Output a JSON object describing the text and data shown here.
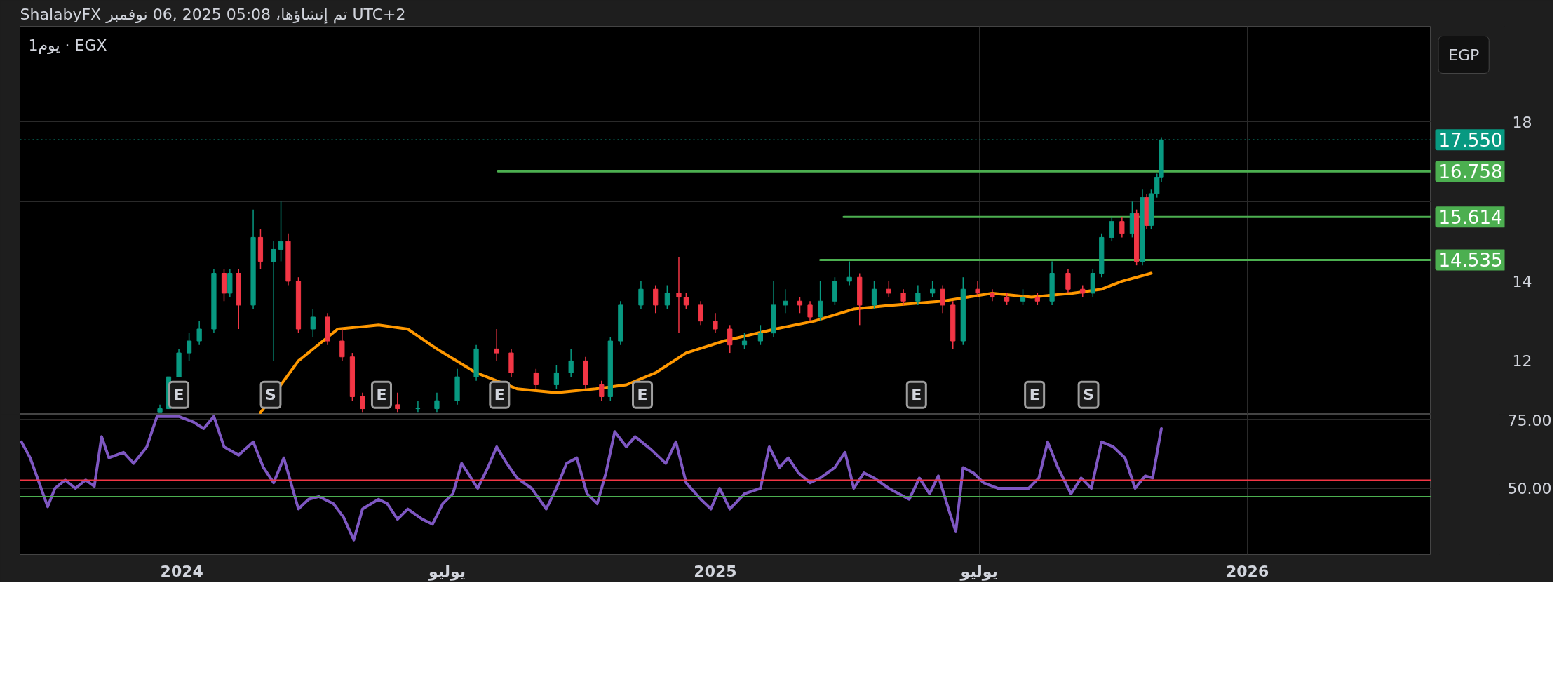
{
  "chart_data": [
    {
      "type": "candlestick",
      "title": "ShalabyFX تم إنشاؤها، 05:08 2025 ,06 نوفمبر UTC+2",
      "subtitle": "يوم1 · EGX",
      "ylabel": "EGP",
      "x": [
        "2023-12-17",
        "2023-12-23",
        "2023-12-30",
        "2024-01-06",
        "2024-01-13",
        "2024-01-23",
        "2024-01-30",
        "2024-02-03",
        "2024-02-09",
        "2024-02-19",
        "2024-02-24",
        "2024-03-04",
        "2024-03-09",
        "2024-03-14",
        "2024-03-21",
        "2024-03-31",
        "2024-04-10",
        "2024-04-20",
        "2024-04-27",
        "2024-05-04",
        "2024-05-28",
        "2024-06-11",
        "2024-06-24",
        "2024-07-08",
        "2024-07-21",
        "2024-08-04",
        "2024-08-14",
        "2024-08-31",
        "2024-09-14",
        "2024-09-24",
        "2024-10-04",
        "2024-10-15",
        "2024-10-21",
        "2024-10-28",
        "2024-11-11",
        "2024-11-21",
        "2024-11-29",
        "2024-12-07",
        "2024-12-12",
        "2024-12-22",
        "2025-01-01",
        "2025-01-11",
        "2025-01-21",
        "2025-02-01",
        "2025-02-10",
        "2025-02-18",
        "2025-02-28",
        "2025-03-07",
        "2025-03-14",
        "2025-03-24",
        "2025-04-03",
        "2025-04-10",
        "2025-04-20",
        "2025-04-30",
        "2025-05-10",
        "2025-05-20",
        "2025-05-30",
        "2025-06-06",
        "2025-06-13",
        "2025-06-20",
        "2025-06-30",
        "2025-07-10",
        "2025-07-20",
        "2025-07-31",
        "2025-08-10",
        "2025-08-20",
        "2025-08-31",
        "2025-09-10",
        "2025-09-17",
        "2025-09-23",
        "2025-09-30",
        "2025-10-07",
        "2025-10-14",
        "2025-10-17",
        "2025-10-21",
        "2025-10-24",
        "2025-10-27",
        "2025-10-31",
        "2025-11-03"
      ],
      "ohlc": [
        [
          10.7,
          10.9,
          10.7,
          10.8
        ],
        [
          10.8,
          11.6,
          10.8,
          11.6
        ],
        [
          11.6,
          12.3,
          11.6,
          12.2
        ],
        [
          12.2,
          12.7,
          12.0,
          12.5
        ],
        [
          12.5,
          13.0,
          12.4,
          12.8
        ],
        [
          12.8,
          14.3,
          12.7,
          14.2
        ],
        [
          14.2,
          14.3,
          13.5,
          13.7
        ],
        [
          13.7,
          14.3,
          13.6,
          14.2
        ],
        [
          14.2,
          14.3,
          12.8,
          13.4
        ],
        [
          13.4,
          15.8,
          13.3,
          15.1
        ],
        [
          15.1,
          15.3,
          14.3,
          14.5
        ],
        [
          14.5,
          15.0,
          12.0,
          14.8
        ],
        [
          14.8,
          16.0,
          14.5,
          15.0
        ],
        [
          15.0,
          15.2,
          13.9,
          14.0
        ],
        [
          14.0,
          14.1,
          12.7,
          12.8
        ],
        [
          12.8,
          13.3,
          12.6,
          13.1
        ],
        [
          13.1,
          13.2,
          12.4,
          12.5
        ],
        [
          12.5,
          12.8,
          12.0,
          12.1
        ],
        [
          12.1,
          12.2,
          11.0,
          11.1
        ],
        [
          11.1,
          11.2,
          10.7,
          10.8
        ],
        [
          10.9,
          11.2,
          10.7,
          10.8
        ],
        [
          10.8,
          11.0,
          10.7,
          10.8
        ],
        [
          10.8,
          11.2,
          10.7,
          11.0
        ],
        [
          11.0,
          11.8,
          10.9,
          11.6
        ],
        [
          11.6,
          12.4,
          11.5,
          12.3
        ],
        [
          12.3,
          12.8,
          12.0,
          12.2
        ],
        [
          12.2,
          12.3,
          11.6,
          11.7
        ],
        [
          11.7,
          11.8,
          11.3,
          11.4
        ],
        [
          11.4,
          11.9,
          11.3,
          11.7
        ],
        [
          11.7,
          12.3,
          11.6,
          12.0
        ],
        [
          12.0,
          12.1,
          11.3,
          11.4
        ],
        [
          11.4,
          11.5,
          11.0,
          11.1
        ],
        [
          11.1,
          12.6,
          11.0,
          12.5
        ],
        [
          12.5,
          13.5,
          12.4,
          13.4
        ],
        [
          13.4,
          14.0,
          13.3,
          13.8
        ],
        [
          13.8,
          13.9,
          13.2,
          13.4
        ],
        [
          13.4,
          13.9,
          13.3,
          13.7
        ],
        [
          13.7,
          14.6,
          12.7,
          13.6
        ],
        [
          13.6,
          13.7,
          13.3,
          13.4
        ],
        [
          13.4,
          13.5,
          12.9,
          13.0
        ],
        [
          13.0,
          13.2,
          12.7,
          12.8
        ],
        [
          12.8,
          12.9,
          12.2,
          12.4
        ],
        [
          12.4,
          12.7,
          12.3,
          12.5
        ],
        [
          12.5,
          12.9,
          12.4,
          12.7
        ],
        [
          12.7,
          14.0,
          12.6,
          13.4
        ],
        [
          13.4,
          13.8,
          13.2,
          13.5
        ],
        [
          13.5,
          13.6,
          13.2,
          13.4
        ],
        [
          13.4,
          13.5,
          13.0,
          13.1
        ],
        [
          13.1,
          14.0,
          13.0,
          13.5
        ],
        [
          13.5,
          14.1,
          13.4,
          14.0
        ],
        [
          14.0,
          14.5,
          13.9,
          14.1
        ],
        [
          14.1,
          14.2,
          12.9,
          13.4
        ],
        [
          13.4,
          14.0,
          13.3,
          13.8
        ],
        [
          13.8,
          14.0,
          13.6,
          13.7
        ],
        [
          13.7,
          13.8,
          13.4,
          13.5
        ],
        [
          13.5,
          13.9,
          13.4,
          13.7
        ],
        [
          13.7,
          14.0,
          13.6,
          13.8
        ],
        [
          13.8,
          13.9,
          13.2,
          13.4
        ],
        [
          13.4,
          13.5,
          12.3,
          12.5
        ],
        [
          12.5,
          14.1,
          12.4,
          13.8
        ],
        [
          13.8,
          14.0,
          13.6,
          13.7
        ],
        [
          13.7,
          13.8,
          13.5,
          13.6
        ],
        [
          13.6,
          13.7,
          13.4,
          13.5
        ],
        [
          13.5,
          13.8,
          13.4,
          13.6
        ],
        [
          13.6,
          13.7,
          13.4,
          13.5
        ],
        [
          13.5,
          14.5,
          13.4,
          14.2
        ],
        [
          14.2,
          14.3,
          13.7,
          13.8
        ],
        [
          13.8,
          13.9,
          13.6,
          13.7
        ],
        [
          13.7,
          14.3,
          13.6,
          14.2
        ],
        [
          14.2,
          15.2,
          14.1,
          15.1
        ],
        [
          15.1,
          15.6,
          15.0,
          15.5
        ],
        [
          15.5,
          15.6,
          15.1,
          15.2
        ],
        [
          15.2,
          16.0,
          15.1,
          15.7
        ],
        [
          15.7,
          15.8,
          14.4,
          14.5
        ],
        [
          14.5,
          16.3,
          14.4,
          16.1
        ],
        [
          16.1,
          16.2,
          15.3,
          15.4
        ],
        [
          15.4,
          16.3,
          15.3,
          16.2
        ],
        [
          16.2,
          16.7,
          16.1,
          16.6
        ],
        [
          16.6,
          17.6,
          16.5,
          17.55
        ]
      ],
      "series": [
        {
          "type": "line",
          "color": "#ff9800",
          "x": [
            "2024-02-24",
            "2024-03-21",
            "2024-04-17",
            "2024-05-15",
            "2024-06-04",
            "2024-06-24",
            "2024-07-21",
            "2024-08-18",
            "2024-09-14",
            "2024-10-11",
            "2024-11-01",
            "2024-11-21",
            "2024-12-12",
            "2025-01-07",
            "2025-02-11",
            "2025-03-10",
            "2025-04-06",
            "2025-05-03",
            "2025-06-06",
            "2025-07-10",
            "2025-08-06",
            "2025-09-03",
            "2025-09-23",
            "2025-10-07",
            "2025-10-27"
          ],
          "values": [
            10.7,
            12.0,
            12.8,
            12.9,
            12.8,
            12.3,
            11.7,
            11.3,
            11.2,
            11.3,
            11.4,
            11.7,
            12.2,
            12.5,
            12.8,
            13.0,
            13.3,
            13.4,
            13.5,
            13.7,
            13.6,
            13.7,
            13.8,
            14.0,
            14.2
          ]
        },
        {
          "type": "line",
          "color": "#4caf50",
          "x": [
            "2024-08-05",
            "2026-05-07"
          ],
          "values": [
            16.758,
            16.758
          ],
          "value_labels": [
            null,
            "16.758"
          ]
        },
        {
          "type": "line",
          "color": "#4caf50",
          "x": [
            "2025-03-30",
            "2026-05-07"
          ],
          "values": [
            15.614,
            15.614
          ],
          "value_labels": [
            null,
            "15.614"
          ]
        },
        {
          "type": "line",
          "color": "#4caf50",
          "x": [
            "2025-03-14",
            "2026-05-07"
          ],
          "values": [
            14.535,
            14.535
          ],
          "value_labels": [
            null,
            "14.535"
          ]
        }
      ],
      "ref_lines": [
        {
          "axis": "y",
          "value": 17.55,
          "label": "17.550",
          "color": "#089981",
          "line_style": "dotted"
        }
      ],
      "annotations": [
        {
          "text": "E",
          "x": "2023-12-30",
          "y": 11.15
        },
        {
          "text": "S",
          "x": "2024-03-02",
          "y": 11.15
        },
        {
          "text": "E",
          "x": "2024-05-17",
          "y": 11.15
        },
        {
          "text": "E",
          "x": "2024-08-06",
          "y": 11.15
        },
        {
          "text": "E",
          "x": "2024-11-12",
          "y": 11.15
        },
        {
          "text": "E",
          "x": "2025-05-19",
          "y": 11.15
        },
        {
          "text": "E",
          "x": "2025-08-08",
          "y": 11.15
        },
        {
          "text": "S",
          "x": "2025-09-14",
          "y": 11.15
        }
      ],
      "xlim": [
        "2023-09-12",
        "2026-05-07"
      ],
      "ylim": [
        10.66,
        20.4
      ],
      "yticks": [
        12,
        14,
        {
          "value": 16,
          "label": null
        },
        18
      ],
      "xticks": [
        {
          "value": "2024-01-01",
          "label": null
        },
        {
          "value": "2024-07-01",
          "label": null
        },
        {
          "value": "2025-01-01",
          "label": null
        },
        {
          "value": "2025-07-01",
          "label": null
        },
        {
          "value": "2026-01-01",
          "label": null
        }
      ],
      "grid": true,
      "tick_labels": "y"
    },
    {
      "type": "line",
      "series": [
        {
          "color": "#7e57c2",
          "x": [
            "2023-09-13",
            "2023-09-19",
            "2023-09-24",
            "2023-10-01",
            "2023-10-06",
            "2023-10-13",
            "2023-10-20",
            "2023-10-27",
            "2023-11-02",
            "2023-11-07",
            "2023-11-12",
            "2023-11-22",
            "2023-11-29",
            "2023-12-08",
            "2023-12-15",
            "2023-12-23",
            "2023-12-30",
            "2024-01-09",
            "2024-01-16",
            "2024-01-23",
            "2024-01-30",
            "2024-02-09",
            "2024-02-19",
            "2024-02-26",
            "2024-03-04",
            "2024-03-11",
            "2024-03-21",
            "2024-03-28",
            "2024-04-04",
            "2024-04-14",
            "2024-04-21",
            "2024-04-28",
            "2024-05-04",
            "2024-05-15",
            "2024-05-21",
            "2024-05-28",
            "2024-06-04",
            "2024-06-14",
            "2024-06-21",
            "2024-06-28",
            "2024-07-05",
            "2024-07-11",
            "2024-07-22",
            "2024-07-29",
            "2024-08-04",
            "2024-08-11",
            "2024-08-18",
            "2024-08-28",
            "2024-09-07",
            "2024-09-14",
            "2024-09-21",
            "2024-09-28",
            "2024-10-05",
            "2024-10-12",
            "2024-10-18",
            "2024-10-24",
            "2024-11-01",
            "2024-11-07",
            "2024-11-18",
            "2024-11-28",
            "2024-12-05",
            "2024-12-12",
            "2024-12-22",
            "2024-12-29",
            "2025-01-04",
            "2025-01-11",
            "2025-01-21",
            "2025-02-01",
            "2025-02-07",
            "2025-02-14",
            "2025-02-20",
            "2025-02-27",
            "2025-03-07",
            "2025-03-14",
            "2025-03-24",
            "2025-03-31",
            "2025-04-06",
            "2025-04-13",
            "2025-04-20",
            "2025-04-30",
            "2025-05-07",
            "2025-05-14",
            "2025-05-21",
            "2025-05-28",
            "2025-06-03",
            "2025-06-10",
            "2025-06-15",
            "2025-06-20",
            "2025-06-27",
            "2025-07-04",
            "2025-07-14",
            "2025-07-25",
            "2025-08-04",
            "2025-08-11",
            "2025-08-17",
            "2025-08-24",
            "2025-09-02",
            "2025-09-09",
            "2025-09-16",
            "2025-09-23",
            "2025-10-01",
            "2025-10-09",
            "2025-10-16",
            "2025-10-23",
            "2025-10-28",
            "2025-11-03"
          ],
          "values": [
            66.8,
            61,
            53.7,
            43.3,
            50,
            53,
            50,
            53,
            50.7,
            68.7,
            61,
            63,
            59,
            65,
            76,
            76,
            76,
            74,
            71.6,
            76,
            65,
            62,
            66.8,
            57.5,
            52,
            61,
            42.5,
            46,
            47,
            44.4,
            39.5,
            31.3,
            42.5,
            46,
            44.4,
            38.8,
            42.5,
            38.8,
            37,
            44.4,
            48,
            59,
            50,
            57.5,
            65,
            59,
            53.7,
            50,
            42.5,
            50,
            59,
            61,
            48,
            44.4,
            55.6,
            70.5,
            65,
            68.7,
            64,
            59,
            66.8,
            52,
            46,
            42.5,
            50,
            42.5,
            48,
            50,
            65,
            57.5,
            61,
            55.6,
            52,
            53.7,
            57.5,
            63,
            50,
            55.6,
            53.7,
            50,
            48,
            46,
            53.7,
            48,
            54.5,
            42.5,
            34.3,
            57.5,
            55.6,
            52,
            50,
            50,
            50,
            53.7,
            66.8,
            57.5,
            48,
            53.7,
            50,
            66.8,
            65,
            61,
            50,
            54.5,
            53.7,
            71.6
          ]
        }
      ],
      "ref_lines": [
        {
          "axis": "y",
          "value": 53,
          "color": "#f23645"
        },
        {
          "axis": "y",
          "value": 47,
          "color": "#4caf50"
        }
      ],
      "xlim": [
        "2023-09-12",
        "2026-05-07"
      ],
      "ylim": [
        26,
        76.8
      ],
      "yticks": [
        {
          "value": 50,
          "label": "50.00"
        },
        {
          "value": 75,
          "label": "75.00"
        }
      ],
      "xticks": [
        {
          "value": "2024-01-01",
          "label": "2024"
        },
        {
          "value": "2024-07-01",
          "label": "يوليو"
        },
        {
          "value": "2025-01-01",
          "label": "2025"
        },
        {
          "value": "2025-07-01",
          "label": "يوليو"
        },
        {
          "value": "2026-01-01",
          "label": "2026"
        }
      ],
      "grid": true
    }
  ]
}
